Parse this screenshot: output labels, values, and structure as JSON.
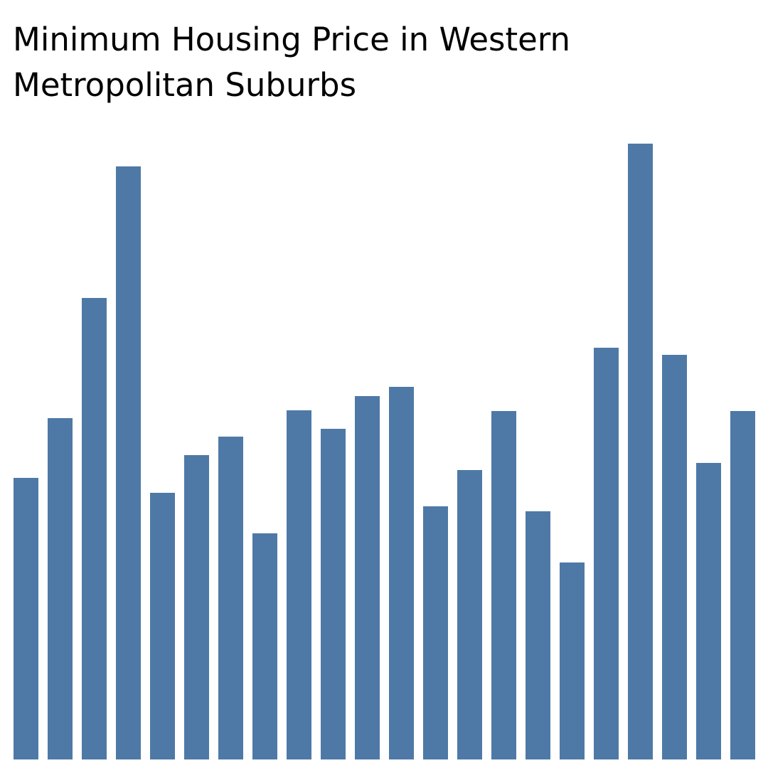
{
  "chart_data": {
    "type": "bar",
    "title": "Minimum Housing Price in Western Metropolitan Suburbs",
    "xlabel": "",
    "ylabel": "",
    "categories": [
      "",
      "",
      "",
      "",
      "",
      "",
      "",
      "",
      "",
      "",
      "",
      "",
      "",
      "",
      "",
      "",
      "",
      "",
      "",
      "",
      "",
      ""
    ],
    "values": [
      396,
      480,
      649,
      834,
      375,
      428,
      454,
      318,
      491,
      465,
      511,
      524,
      356,
      407,
      490,
      349,
      277,
      579,
      866,
      569,
      417,
      490
    ],
    "ylim": [
      0,
      866
    ],
    "grid": false,
    "legend": "none",
    "colors": {
      "bar": "#4e79a7",
      "background": "#ffffff",
      "title": "#000000"
    }
  }
}
